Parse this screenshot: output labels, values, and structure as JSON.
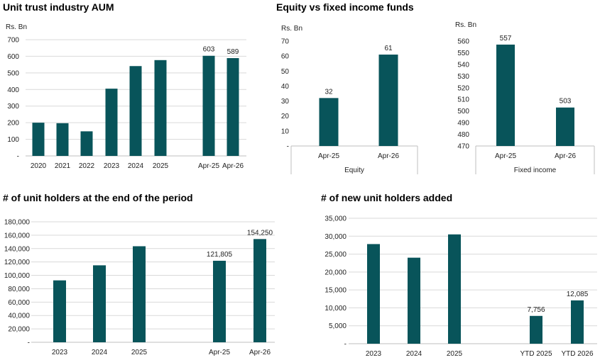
{
  "titles": {
    "aum": "Unit trust industry AUM",
    "equity_fixed": "Equity vs fixed income funds",
    "holders": "# of unit holders at the end of the period",
    "new_holders": "# of new unit holders added"
  },
  "colors": {
    "bar": "#08545a",
    "axis": "#bfbfbf",
    "grid": "#d9d9d9"
  },
  "chart_data": [
    {
      "id": "aum",
      "type": "bar",
      "ylabel": "Rs. Bn",
      "ylim": [
        0,
        700
      ],
      "yticks": [
        "-",
        "100",
        "200",
        "300",
        "400",
        "500",
        "600",
        "700"
      ],
      "categories": [
        "2020",
        "2021",
        "2022",
        "2023",
        "2024",
        "2025",
        "Apr-25",
        "Apr-26"
      ],
      "values": [
        200,
        197,
        148,
        405,
        541,
        577,
        603,
        589
      ],
      "data_labels": [
        "",
        "",
        "",
        "",
        "",
        "",
        "603",
        "589"
      ],
      "grid": true
    },
    {
      "id": "equity",
      "type": "bar",
      "ylabel": "Rs. Bn",
      "ylim": [
        0,
        70
      ],
      "yticks": [
        "-",
        "10",
        "20",
        "30",
        "40",
        "50",
        "60",
        "70"
      ],
      "categories": [
        "Apr-25",
        "Apr-26"
      ],
      "values": [
        32,
        61
      ],
      "data_labels": [
        "32",
        "61"
      ],
      "group_label": "Equity",
      "grid": false
    },
    {
      "id": "fixed_income",
      "type": "bar",
      "ylabel": "Rs. Bn",
      "ylim": [
        470,
        560
      ],
      "yticks": [
        "470",
        "480",
        "490",
        "500",
        "510",
        "520",
        "530",
        "540",
        "550",
        "560"
      ],
      "categories": [
        "Apr-25",
        "Apr-26"
      ],
      "values": [
        557,
        503
      ],
      "data_labels": [
        "557",
        "503"
      ],
      "group_label": "Fixed income",
      "grid": false
    },
    {
      "id": "holders",
      "type": "bar",
      "ylabel": "",
      "ylim": [
        0,
        180000
      ],
      "yticks": [
        "-",
        "20,000",
        "40,000",
        "60,000",
        "80,000",
        "100,000",
        "120,000",
        "140,000",
        "160,000",
        "180,000"
      ],
      "categories": [
        "2023",
        "2024",
        "2025",
        "Apr-25",
        "Apr-26"
      ],
      "values": [
        92500,
        115000,
        143500,
        121805,
        154250
      ],
      "data_labels": [
        "",
        "",
        "",
        "121,805",
        "154,250"
      ],
      "grid": true
    },
    {
      "id": "new_holders",
      "type": "bar",
      "ylabel": "",
      "ylim": [
        0,
        35000
      ],
      "yticks": [
        "-",
        "5,000",
        "10,000",
        "15,000",
        "20,000",
        "25,000",
        "30,000",
        "35,000"
      ],
      "categories": [
        "2023",
        "2024",
        "2025",
        "YTD 2025",
        "YTD 2026"
      ],
      "values": [
        27800,
        24000,
        30500,
        7756,
        12085
      ],
      "data_labels": [
        "",
        "",
        "",
        "7,756",
        "12,085"
      ],
      "grid": true
    }
  ]
}
